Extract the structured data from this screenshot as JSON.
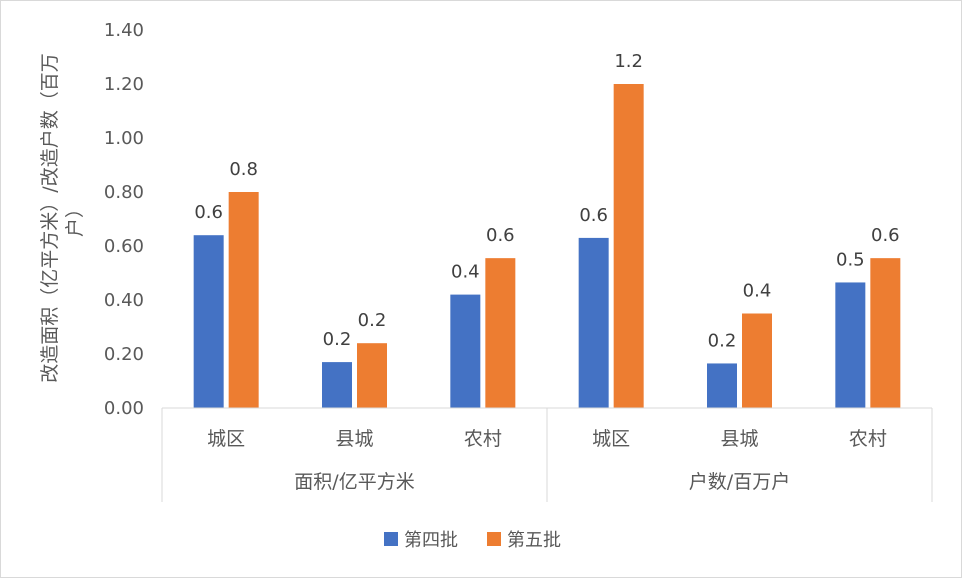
{
  "chart_data": {
    "type": "bar",
    "groups": [
      {
        "label": "面积/亿平方米",
        "categories": [
          "城区",
          "县城",
          "农村"
        ]
      },
      {
        "label": "户数/百万户",
        "categories": [
          "城区",
          "县城",
          "农村"
        ]
      }
    ],
    "series": [
      {
        "name": "第四批",
        "color": "#4472C4",
        "values": [
          0.64,
          0.17,
          0.42,
          0.63,
          0.165,
          0.465
        ],
        "labels": [
          "0.6",
          "0.2",
          "0.4",
          "0.6",
          "0.2",
          "0.5"
        ]
      },
      {
        "name": "第五批",
        "color": "#ED7D31",
        "values": [
          0.8,
          0.24,
          0.555,
          1.2,
          0.35,
          0.555
        ],
        "labels": [
          "0.8",
          "0.2",
          "0.6",
          "1.2",
          "0.4",
          "0.6"
        ]
      }
    ],
    "ylabel_line1": "改造面积（亿平方米）/改造户数（百万",
    "ylabel_line2": "户）",
    "ylim": [
      0,
      1.4
    ],
    "yticks": [
      "0.00",
      "0.20",
      "0.40",
      "0.60",
      "0.80",
      "1.00",
      "1.20",
      "1.40"
    ],
    "legend_position": "bottom"
  }
}
